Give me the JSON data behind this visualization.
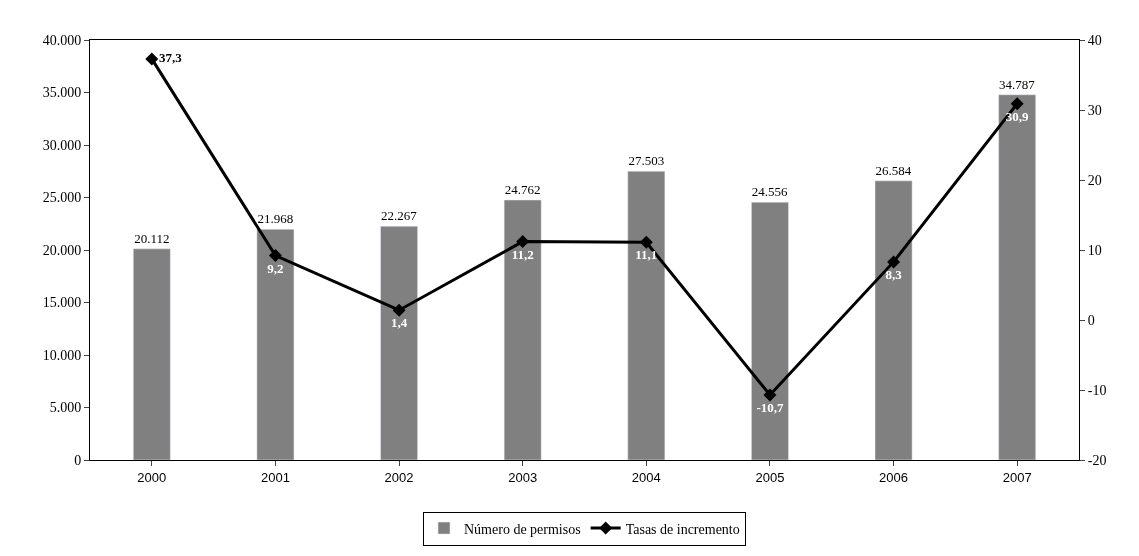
{
  "chart_data": {
    "type": "bar",
    "categories": [
      "2000",
      "2001",
      "2002",
      "2003",
      "2004",
      "2005",
      "2006",
      "2007"
    ],
    "series": [
      {
        "name": "Número de permisos",
        "color": "#808080",
        "values": [
          20112,
          21968,
          22267,
          24762,
          27503,
          24556,
          26584,
          34787
        ],
        "value_labels": [
          "20.112",
          "21.968",
          "22.267",
          "24.762",
          "27.503",
          "24.556",
          "26.584",
          "34.787"
        ]
      },
      {
        "name": "Tasas de incremento",
        "type": "line",
        "axis": "y2",
        "color": "#000000",
        "marker": "diamond",
        "values": [
          37.3,
          9.2,
          1.4,
          11.2,
          11.1,
          -10.7,
          8.3,
          30.9
        ],
        "value_labels": [
          "37,3",
          "9,2",
          "1,4",
          "11,2",
          "11,1",
          "-10,7",
          "8,3",
          "30,9"
        ]
      }
    ],
    "ylim": [
      0,
      40000
    ],
    "yticks": [
      {
        "value": 0,
        "label": "0"
      },
      {
        "value": 5000,
        "label": "5.000"
      },
      {
        "value": 10000,
        "label": "10.000"
      },
      {
        "value": 15000,
        "label": "15.000"
      },
      {
        "value": 20000,
        "label": "20.000"
      },
      {
        "value": 25000,
        "label": "25.000"
      },
      {
        "value": 30000,
        "label": "30.000"
      },
      {
        "value": 35000,
        "label": "35.000"
      },
      {
        "value": 40000,
        "label": "40.000"
      }
    ],
    "y2lim": [
      -20,
      40
    ],
    "y2ticks": [
      -20,
      -10,
      0,
      10,
      20,
      30,
      40
    ],
    "legend": "bottom"
  }
}
